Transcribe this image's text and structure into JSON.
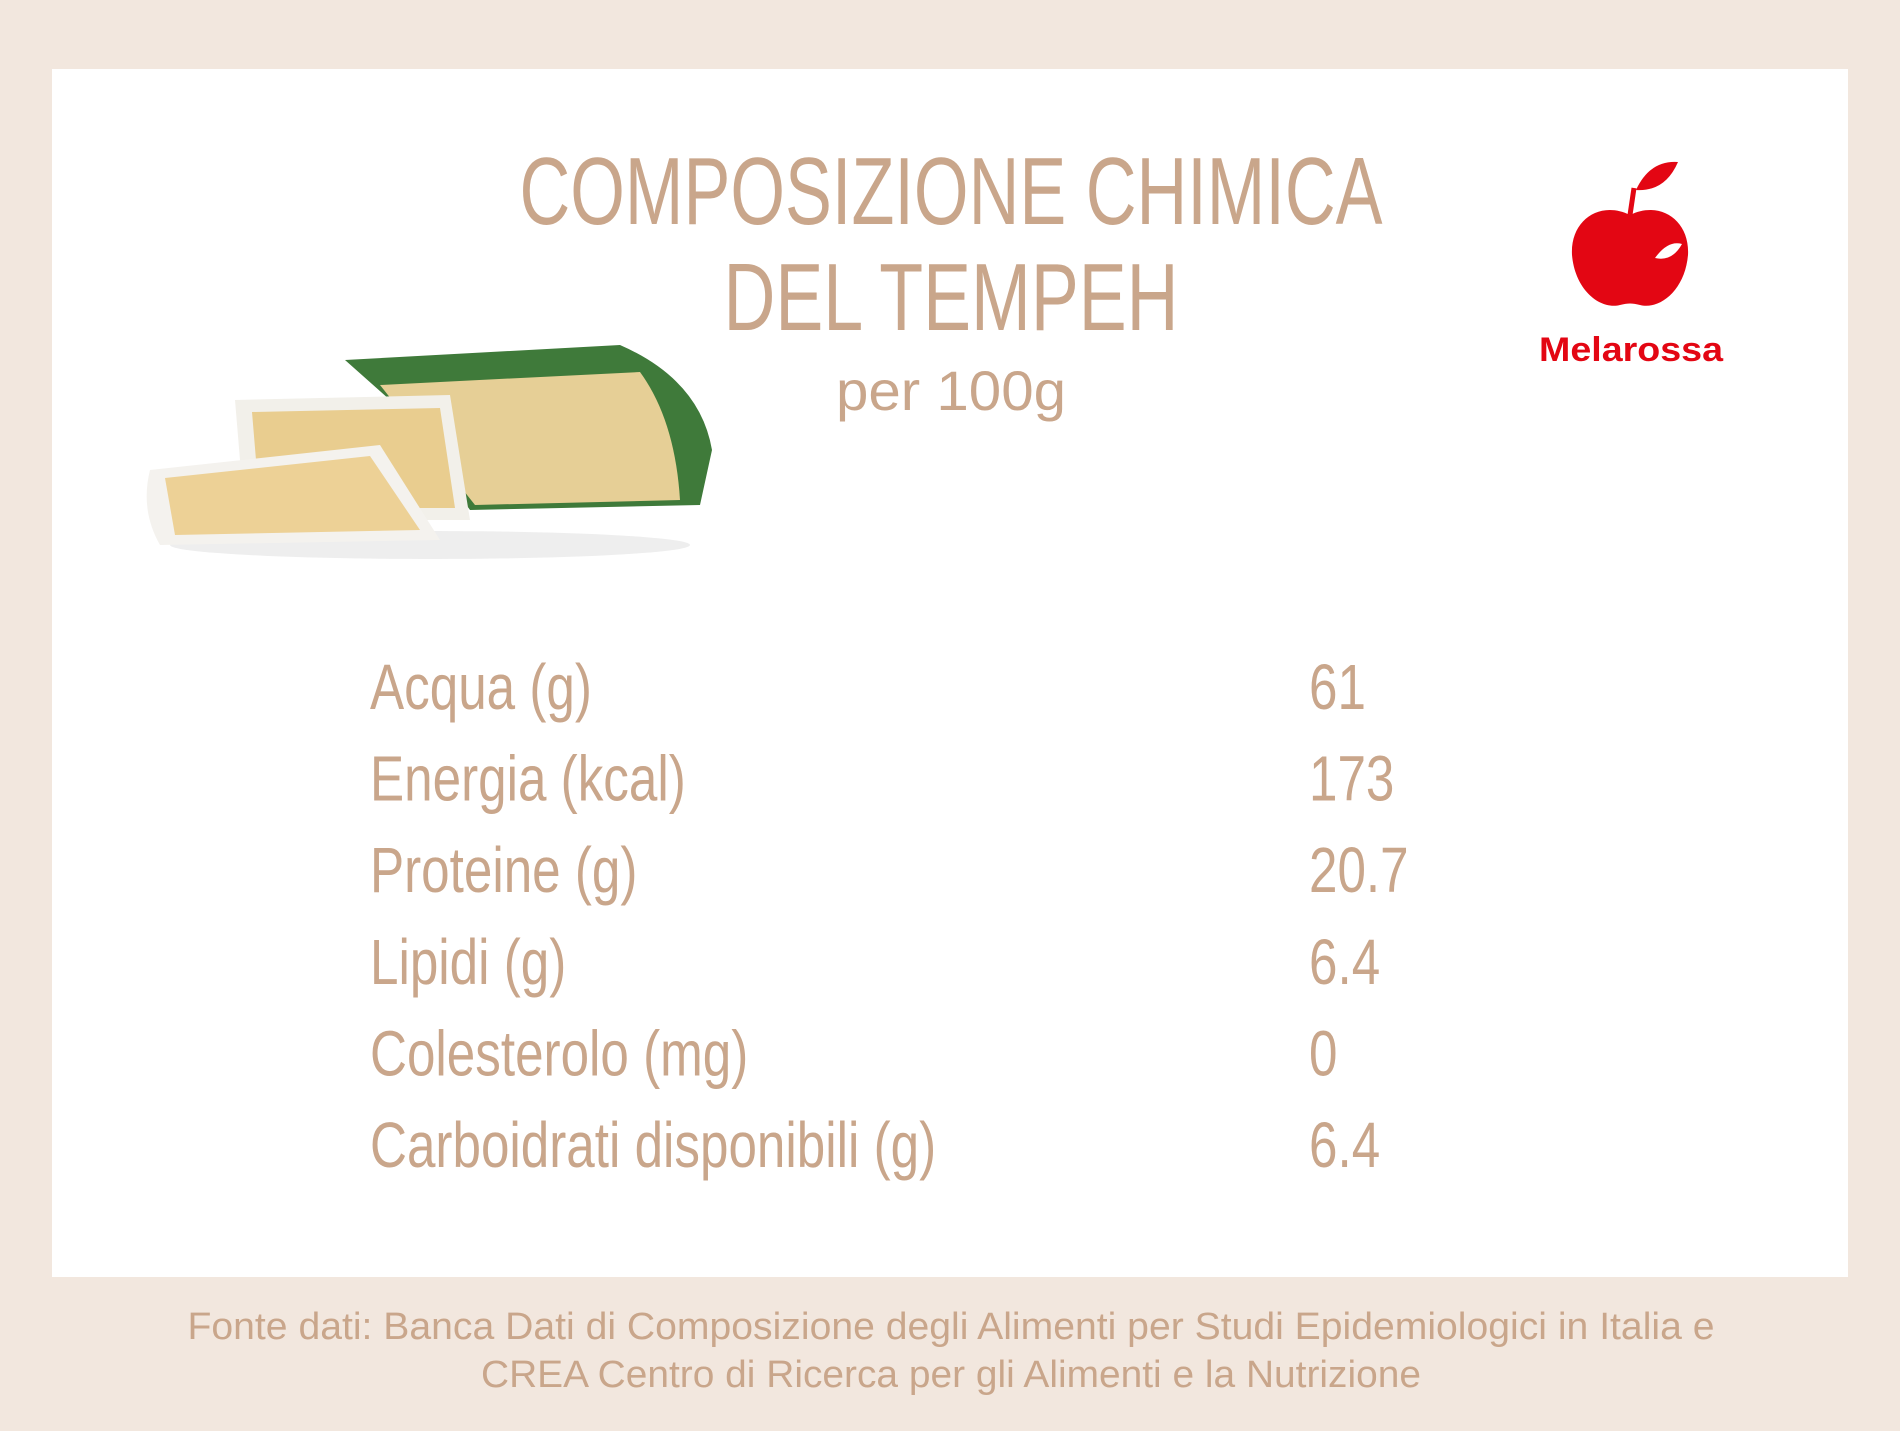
{
  "header": {
    "title": [
      "COMPOSIZIONE CHIMICA",
      "DEL TEMPEH"
    ],
    "subtitle": "per 100g"
  },
  "logo": {
    "text": "Melarossa"
  },
  "table": {
    "rows": [
      [
        "Acqua (g)",
        "61"
      ],
      [
        "Energia (kcal)",
        "173"
      ],
      [
        "Proteine (g)",
        "20.7"
      ],
      [
        "Lipidi (g)",
        "6.4"
      ],
      [
        "Colesterolo (mg)",
        "0"
      ],
      [
        "Carboidrati disponibili (g)",
        "6.4"
      ]
    ]
  },
  "footer": {
    "source": [
      "Fonte dati: Banca Dati di Composizione degli Alimenti per Studi Epidemiologici in Italia e",
      "CREA Centro di Ricerca per gli Alimenti e la Nutrizione"
    ]
  }
}
